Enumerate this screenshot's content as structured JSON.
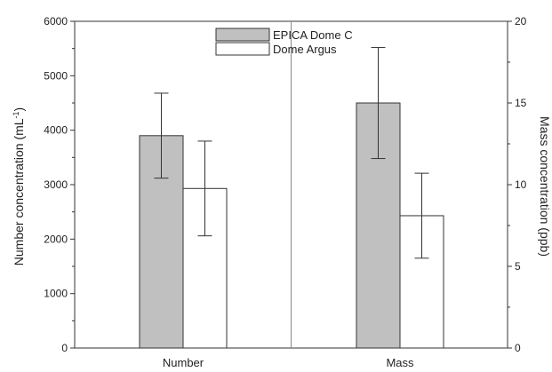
{
  "chart_data": {
    "type": "bar",
    "categories": [
      "Number",
      "Mass"
    ],
    "series": [
      {
        "name": "EPICA Dome C",
        "color": "#c0c0c0",
        "values": [
          3900,
          15.0
        ],
        "errors": [
          [
            3120,
            4680
          ],
          [
            11.6,
            18.4
          ]
        ]
      },
      {
        "name": "Dome Argus",
        "color": "#ffffff",
        "values": [
          2930,
          8.1
        ],
        "errors": [
          [
            2060,
            3800
          ],
          [
            5.5,
            10.7
          ]
        ]
      }
    ],
    "left_axis": {
      "label_main": "Number concentration (mL",
      "label_sup": "-1",
      "label_end": ")",
      "ylim": [
        0,
        6000
      ],
      "ticks": [
        "0",
        "1000",
        "2000",
        "3000",
        "4000",
        "5000",
        "6000"
      ]
    },
    "right_axis": {
      "label": "Mass concentration (ppb)",
      "ylim": [
        0,
        20
      ],
      "ticks": [
        "0",
        "5",
        "10",
        "15",
        "20"
      ]
    },
    "category_axis_map": [
      "left",
      "right"
    ],
    "divider": true,
    "legend_position": "top-center"
  }
}
